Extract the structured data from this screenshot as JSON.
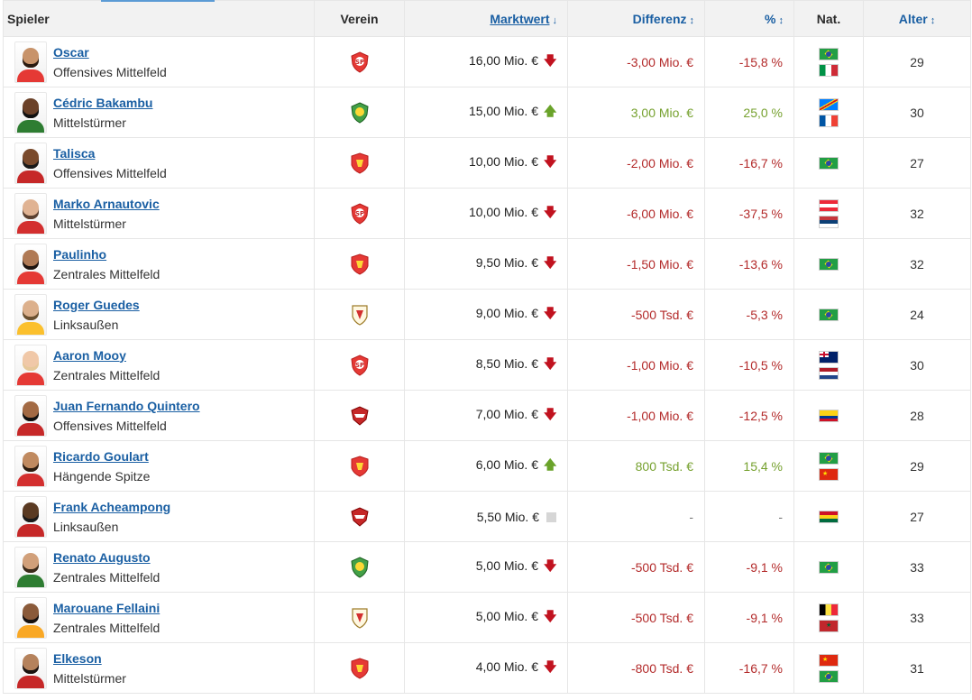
{
  "header": {
    "player": "Spieler",
    "club": "Verein",
    "market_value": "Marktwert",
    "market_value_sort": "↓",
    "difference": "Differenz",
    "difference_sort": "↕",
    "percent": "%",
    "percent_sort": "↕",
    "nationality": "Nat.",
    "age": "Alter",
    "age_sort": "↕"
  },
  "colors": {
    "link": "#1a5fa3",
    "negative": "#b32a2a",
    "positive": "#76a12f",
    "down_arrow": "#c1121f",
    "up_arrow": "#6aa32a"
  },
  "rows": [
    {
      "name": "Oscar",
      "position": "Offensives Mittelfeld",
      "club_icon": "shanghai-port-crest",
      "value": "16,00 Mio. €",
      "trend": "down",
      "diff": "-3,00 Mio. €",
      "pct": "-15,8 %",
      "sign": "neg",
      "nations": [
        "brazil",
        "italy"
      ],
      "age": "29"
    },
    {
      "name": "Cédric Bakambu",
      "position": "Mittelstürmer",
      "club_icon": "beijing-guoan-crest",
      "value": "15,00 Mio. €",
      "trend": "up",
      "diff": "3,00 Mio. €",
      "pct": "25,0 %",
      "sign": "pos",
      "nations": [
        "dr-congo",
        "france"
      ],
      "age": "30"
    },
    {
      "name": "Talisca",
      "position": "Offensives Mittelfeld",
      "club_icon": "guangzhou-fc-crest",
      "value": "10,00 Mio. €",
      "trend": "down",
      "diff": "-2,00 Mio. €",
      "pct": "-16,7 %",
      "sign": "neg",
      "nations": [
        "brazil"
      ],
      "age": "27"
    },
    {
      "name": "Marko Arnautovic",
      "position": "Mittelstürmer",
      "club_icon": "shanghai-port-crest",
      "value": "10,00 Mio. €",
      "trend": "down",
      "diff": "-6,00 Mio. €",
      "pct": "-37,5 %",
      "sign": "neg",
      "nations": [
        "austria",
        "serbia"
      ],
      "age": "32"
    },
    {
      "name": "Paulinho",
      "position": "Zentrales Mittelfeld",
      "club_icon": "guangzhou-fc-crest",
      "value": "9,50 Mio. €",
      "trend": "down",
      "diff": "-1,50 Mio. €",
      "pct": "-13,6 %",
      "sign": "neg",
      "nations": [
        "brazil"
      ],
      "age": "32"
    },
    {
      "name": "Roger Guedes",
      "position": "Linksaußen",
      "club_icon": "shandong-taishan-crest",
      "value": "9,00 Mio. €",
      "trend": "down",
      "diff": "-500 Tsd. €",
      "pct": "-5,3 %",
      "sign": "neg",
      "nations": [
        "brazil"
      ],
      "age": "24"
    },
    {
      "name": "Aaron Mooy",
      "position": "Zentrales Mittelfeld",
      "club_icon": "shanghai-port-crest",
      "value": "8,50 Mio. €",
      "trend": "down",
      "diff": "-1,00 Mio. €",
      "pct": "-10,5 %",
      "sign": "neg",
      "nations": [
        "australia",
        "netherlands"
      ],
      "age": "30"
    },
    {
      "name": "Juan Fernando Quintero",
      "position": "Offensives Mittelfeld",
      "club_icon": "shenzhen-fc-crest",
      "value": "7,00 Mio. €",
      "trend": "down",
      "diff": "-1,00 Mio. €",
      "pct": "-12,5 %",
      "sign": "neg",
      "nations": [
        "colombia"
      ],
      "age": "28"
    },
    {
      "name": "Ricardo Goulart",
      "position": "Hängende Spitze",
      "club_icon": "guangzhou-fc-crest",
      "value": "6,00 Mio. €",
      "trend": "up",
      "diff": "800 Tsd. €",
      "pct": "15,4 %",
      "sign": "pos",
      "nations": [
        "brazil",
        "china"
      ],
      "age": "29"
    },
    {
      "name": "Frank Acheampong",
      "position": "Linksaußen",
      "club_icon": "shenzhen-fc-crest",
      "value": "5,50 Mio. €",
      "trend": "flat",
      "diff": "-",
      "pct": "-",
      "sign": "none",
      "nations": [
        "ghana"
      ],
      "age": "27"
    },
    {
      "name": "Renato Augusto",
      "position": "Zentrales Mittelfeld",
      "club_icon": "beijing-guoan-crest",
      "value": "5,00 Mio. €",
      "trend": "down",
      "diff": "-500 Tsd. €",
      "pct": "-9,1 %",
      "sign": "neg",
      "nations": [
        "brazil"
      ],
      "age": "33"
    },
    {
      "name": "Marouane Fellaini",
      "position": "Zentrales Mittelfeld",
      "club_icon": "shandong-taishan-crest",
      "value": "5,00 Mio. €",
      "trend": "down",
      "diff": "-500 Tsd. €",
      "pct": "-9,1 %",
      "sign": "neg",
      "nations": [
        "belgium",
        "morocco"
      ],
      "age": "33"
    },
    {
      "name": "Elkeson",
      "position": "Mittelstürmer",
      "club_icon": "guangzhou-fc-crest",
      "value": "4,00 Mio. €",
      "trend": "down",
      "diff": "-800 Tsd. €",
      "pct": "-16,7 %",
      "sign": "neg",
      "nations": [
        "china",
        "brazil"
      ],
      "age": "31"
    }
  ]
}
